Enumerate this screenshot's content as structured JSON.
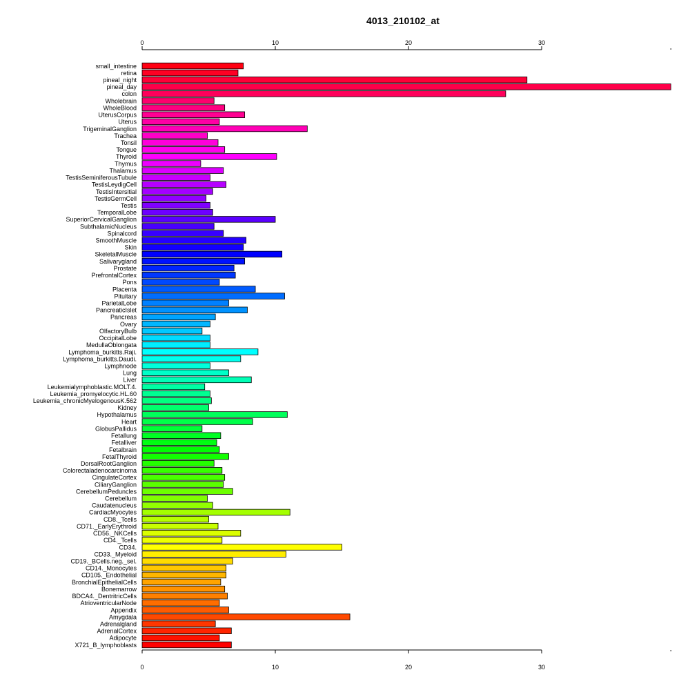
{
  "chart_data": {
    "type": "bar",
    "orientation": "horizontal",
    "title": "4013_210102_at",
    "xlim": [
      0,
      39.7
    ],
    "xticks": [
      0,
      10,
      20,
      30
    ],
    "axes": [
      "top",
      "bottom"
    ],
    "grid": false,
    "categories": [
      "small_intestine",
      "retina",
      "pineal_night",
      "pineal_day",
      "colon",
      "Wholebrain",
      "WholeBlood",
      "UterusCorpus",
      "Uterus",
      "TrigeminalGanglion",
      "Trachea",
      "Tonsil",
      "Tongue",
      "Thyroid",
      "Thymus",
      "Thalamus",
      "TestisSeminiferousTubule",
      "TestisLeydigCell",
      "TestisIntersitial",
      "TestisGermCell",
      "Testis",
      "TemporalLobe",
      "SuperiorCervicalGanglion",
      "SubthalamicNucleus",
      "Spinalcord",
      "SmoothMuscle",
      "Skin",
      "SkeletalMuscle",
      "Salivarygland",
      "Prostate",
      "PrefrontalCortex",
      "Pons",
      "Placenta",
      "Pituitary",
      "ParietalLobe",
      "PancreaticIslet",
      "Pancreas",
      "Ovary",
      "OlfactoryBulb",
      "OccipitalLobe",
      "MedullaOblongata",
      "Lymphoma_burkitts.Raji.",
      "Lymphoma_burkitts.Daudi.",
      "Lymphnode",
      "Lung",
      "Liver",
      "Leukemialymphoblastic.MOLT.4.",
      "Leukemia_promyelocytic.HL.60",
      "Leukemia_chronicMyelogenousK.562",
      "Kidney",
      "Hypothalamus",
      "Heart",
      "GlobusPallidus",
      "Fetallung",
      "Fetalliver",
      "Fetalbrain",
      "FetalThyroid",
      "DorsalRootGanglion",
      "Colorectaladenocarcinoma",
      "CingulateCortex",
      "CiliaryGanglion",
      "CerebellumPeduncles",
      "Cerebellum",
      "Caudatenucleus",
      "CardiacMyocytes",
      "CD8._Tcells",
      "CD71._EarlyErythroid",
      "CD56._NKCells",
      "CD4._Tcells",
      "CD34.",
      "CD33._Myeloid",
      "CD19._BCells.neg._sel.",
      "CD14._Monocytes",
      "CD105._Endothelial",
      "BronchialEpithelialCells",
      "Bonemarrow",
      "BDCA4._DentritricCells",
      "AtrioventricularNode",
      "Appendix",
      "Amygdala",
      "Adrenalgland",
      "AdrenalCortex",
      "Adipocyte",
      "X721_B_lymphoblasts"
    ],
    "values": [
      7.6,
      7.2,
      28.9,
      39.7,
      27.3,
      5.4,
      6.2,
      7.7,
      5.8,
      12.4,
      4.9,
      5.7,
      6.2,
      10.1,
      4.4,
      6.1,
      5.1,
      6.3,
      5.3,
      4.8,
      5.1,
      5.3,
      10.0,
      5.4,
      6.1,
      7.8,
      7.6,
      10.5,
      7.7,
      6.9,
      7.0,
      5.8,
      8.5,
      10.7,
      6.5,
      7.9,
      5.5,
      5.1,
      4.5,
      5.1,
      5.1,
      8.7,
      7.4,
      5.1,
      6.5,
      8.2,
      4.7,
      5.1,
      5.2,
      5.0,
      10.9,
      8.3,
      4.5,
      5.9,
      5.6,
      5.8,
      6.5,
      5.4,
      6.0,
      6.2,
      6.1,
      6.8,
      4.9,
      5.3,
      11.1,
      5.0,
      5.7,
      7.4,
      6.0,
      15.0,
      10.8,
      6.8,
      6.3,
      6.3,
      5.9,
      6.2,
      6.4,
      5.8,
      6.5,
      15.6,
      5.5,
      6.7,
      5.8,
      6.7
    ]
  }
}
